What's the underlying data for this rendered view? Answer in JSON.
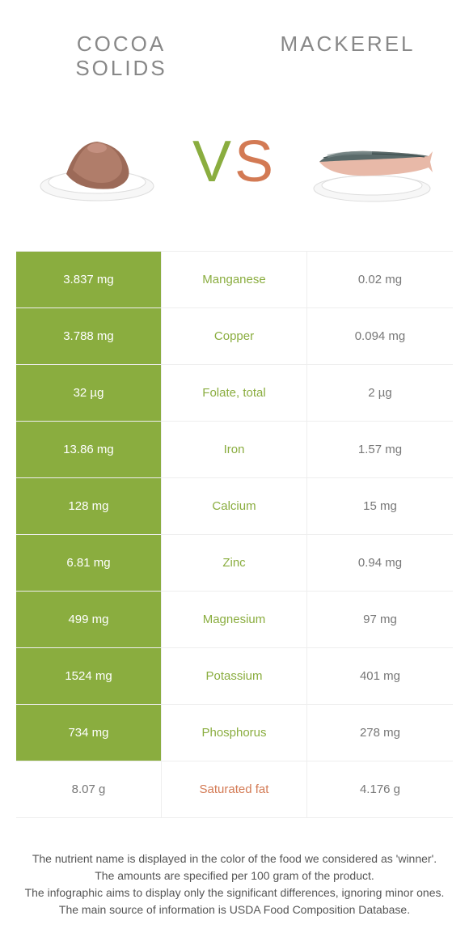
{
  "header": {
    "left_title": "COCOA SOLIDS",
    "right_title": "MACKEREL"
  },
  "vs": {
    "v": "V",
    "s": "S"
  },
  "colors": {
    "green": "#8aad3f",
    "brown": "#d37a54",
    "grey": "#777777",
    "bg": "#ffffff"
  },
  "rows": [
    {
      "nutrient": "Manganese",
      "left": "3.837 mg",
      "right": "0.02 mg",
      "winner": "left",
      "mid_color": "green"
    },
    {
      "nutrient": "Copper",
      "left": "3.788 mg",
      "right": "0.094 mg",
      "winner": "left",
      "mid_color": "green"
    },
    {
      "nutrient": "Folate, total",
      "left": "32 µg",
      "right": "2 µg",
      "winner": "left",
      "mid_color": "green"
    },
    {
      "nutrient": "Iron",
      "left": "13.86 mg",
      "right": "1.57 mg",
      "winner": "left",
      "mid_color": "green"
    },
    {
      "nutrient": "Calcium",
      "left": "128 mg",
      "right": "15 mg",
      "winner": "left",
      "mid_color": "green"
    },
    {
      "nutrient": "Zinc",
      "left": "6.81 mg",
      "right": "0.94 mg",
      "winner": "left",
      "mid_color": "green"
    },
    {
      "nutrient": "Magnesium",
      "left": "499 mg",
      "right": "97 mg",
      "winner": "left",
      "mid_color": "green"
    },
    {
      "nutrient": "Potassium",
      "left": "1524 mg",
      "right": "401 mg",
      "winner": "left",
      "mid_color": "green"
    },
    {
      "nutrient": "Phosphorus",
      "left": "734 mg",
      "right": "278 mg",
      "winner": "left",
      "mid_color": "green"
    },
    {
      "nutrient": "Saturated fat",
      "left": "8.07 g",
      "right": "4.176 g",
      "winner": "none",
      "mid_color": "brown"
    }
  ],
  "footer": {
    "l1": "The nutrient name is displayed in the color of the food we considered as 'winner'.",
    "l2": "The amounts are specified per 100 gram of the product.",
    "l3": "The infographic aims to display only the significant differences, ignoring minor ones.",
    "l4": "The main source of information is USDA Food Composition Database."
  }
}
